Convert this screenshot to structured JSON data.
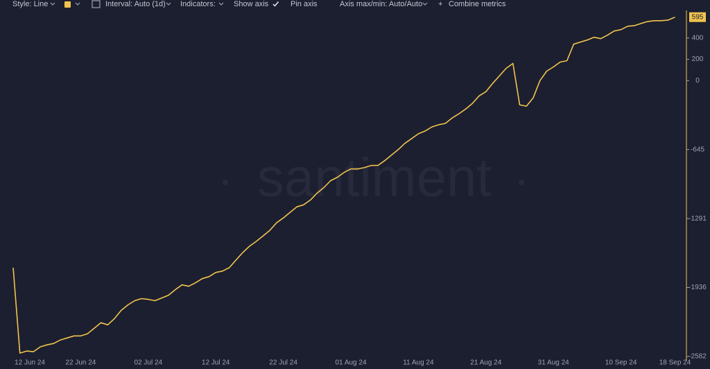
{
  "toolbar": {
    "style": "Style: Line",
    "interval": "Interval: Auto (1d)",
    "indicators": "Indicators:",
    "show_axis": "Show axis",
    "pin_axis": "Pin axis",
    "axis_range": "Axis max/min: Auto/Auto",
    "combine_plus": "+",
    "combine": "Combine metrics"
  },
  "watermark": "santiment",
  "chart_data": {
    "type": "line",
    "categories": [
      "12 Jun 24",
      null,
      null,
      null,
      null,
      null,
      null,
      null,
      null,
      null,
      "22 Jun 24",
      null,
      null,
      null,
      null,
      null,
      null,
      null,
      null,
      null,
      "02 Jul 24",
      null,
      null,
      null,
      null,
      null,
      null,
      null,
      null,
      null,
      "12 Jul 24",
      null,
      null,
      null,
      null,
      null,
      null,
      null,
      null,
      null,
      "22 Jul 24",
      null,
      null,
      null,
      null,
      null,
      null,
      null,
      null,
      null,
      "01 Aug 24",
      null,
      null,
      null,
      null,
      null,
      null,
      null,
      null,
      null,
      "11 Aug 24",
      null,
      null,
      null,
      null,
      null,
      null,
      null,
      null,
      null,
      "21 Aug 24",
      null,
      null,
      null,
      null,
      null,
      null,
      null,
      null,
      null,
      "31 Aug 24",
      null,
      null,
      null,
      null,
      null,
      null,
      null,
      null,
      null,
      "10 Sep 24",
      null,
      null,
      null,
      null,
      null,
      null,
      null,
      "18 Sep 24"
    ],
    "series": [
      {
        "color": "#f2c44f",
        "values": [
          -1750,
          -2550,
          -2531,
          -2537,
          -2492,
          -2473,
          -2460,
          -2427,
          -2408,
          -2389,
          -2389,
          -2369,
          -2318,
          -2266,
          -2285,
          -2227,
          -2150,
          -2098,
          -2059,
          -2040,
          -2047,
          -2059,
          -2034,
          -2008,
          -1956,
          -1911,
          -1924,
          -1892,
          -1853,
          -1834,
          -1795,
          -1782,
          -1750,
          -1679,
          -1608,
          -1549,
          -1504,
          -1453,
          -1401,
          -1330,
          -1285,
          -1233,
          -1181,
          -1162,
          -1117,
          -1052,
          -1001,
          -936,
          -904,
          -859,
          -826,
          -826,
          -813,
          -794,
          -794,
          -749,
          -697,
          -646,
          -587,
          -542,
          -497,
          -471,
          -433,
          -413,
          -400,
          -349,
          -310,
          -265,
          -213,
          -142,
          -103,
          -26,
          45,
          116,
          161,
          -226,
          -239,
          -161,
          0,
          90,
          129,
          174,
          187,
          342,
          362,
          381,
          407,
          394,
          426,
          465,
          478,
          510,
          516,
          536,
          555,
          562,
          562,
          568,
          595
        ]
      }
    ],
    "ylim": [
      -2582,
      658
    ],
    "yticks": [
      400,
      200,
      0,
      -645,
      -1291,
      -1936,
      -2582
    ]
  }
}
